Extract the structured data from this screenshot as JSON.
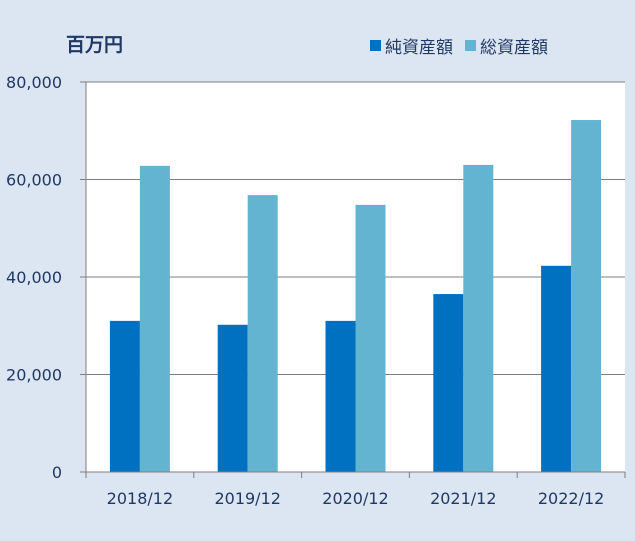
{
  "unit_label": "百万円",
  "colors": {
    "net_assets": "#0070c0",
    "total_assets": "#63b4d1",
    "grid": "#7f7f7f",
    "plot_bg": "#ffffff"
  },
  "chart_data": {
    "type": "bar",
    "categories": [
      "2018/12",
      "2019/12",
      "2020/12",
      "2021/12",
      "2022/12"
    ],
    "series": [
      {
        "name": "純資産額",
        "values": [
          31000,
          30200,
          31000,
          36500,
          42300
        ]
      },
      {
        "name": "総資産額",
        "values": [
          62800,
          56800,
          54800,
          63000,
          72200
        ]
      }
    ],
    "ylim": [
      0,
      80000
    ],
    "yticks": [
      "0",
      "20,000",
      "40,000",
      "60,000",
      "80,000"
    ],
    "ytick_values": [
      0,
      20000,
      40000,
      60000,
      80000
    ],
    "grid": true,
    "legend_position": "top-right"
  }
}
